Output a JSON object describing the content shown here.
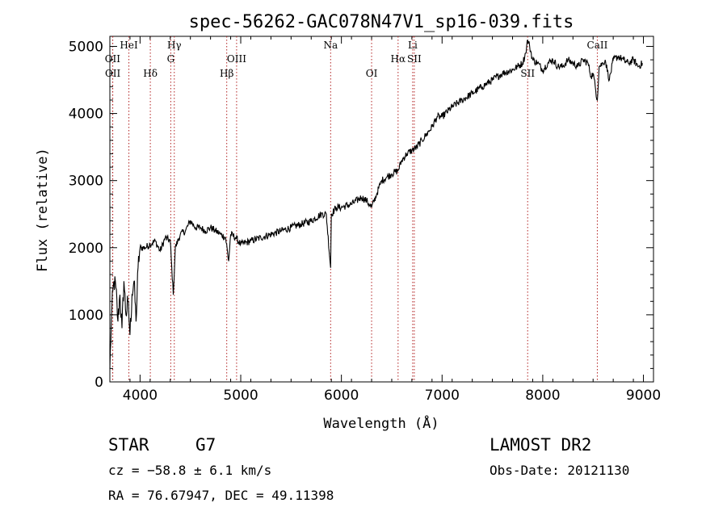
{
  "chart_data": {
    "type": "line",
    "title": "spec-56262-GAC078N47V1_sp16-039.fits",
    "xlabel": "Wavelength (Å)",
    "ylabel": "Flux (relative)",
    "xlim": [
      3700,
      9100
    ],
    "ylim": [
      0,
      5150
    ],
    "xticks": [
      4000,
      5000,
      6000,
      7000,
      8000,
      9000
    ],
    "yticks": [
      0,
      1000,
      2000,
      3000,
      4000,
      5000
    ],
    "grid": false,
    "series": [
      {
        "color": "#000000",
        "x": [
          3700,
          3720,
          3740,
          3760,
          3780,
          3800,
          3820,
          3840,
          3860,
          3880,
          3900,
          3920,
          3940,
          3960,
          3980,
          4000,
          4050,
          4100,
          4150,
          4200,
          4250,
          4300,
          4330,
          4350,
          4400,
          4450,
          4500,
          4550,
          4600,
          4650,
          4700,
          4750,
          4800,
          4850,
          4880,
          4900,
          4950,
          5000,
          5100,
          5200,
          5300,
          5400,
          5500,
          5600,
          5700,
          5800,
          5850,
          5893,
          5900,
          5950,
          6000,
          6100,
          6200,
          6250,
          6300,
          6350,
          6400,
          6450,
          6500,
          6563,
          6600,
          6650,
          6700,
          6750,
          6800,
          6850,
          6900,
          6950,
          7000,
          7100,
          7200,
          7300,
          7400,
          7500,
          7600,
          7700,
          7750,
          7800,
          7830,
          7850,
          7870,
          7900,
          7950,
          8000,
          8050,
          8100,
          8150,
          8200,
          8250,
          8300,
          8350,
          8400,
          8450,
          8480,
          8500,
          8542,
          8560,
          8600,
          8620,
          8662,
          8700,
          8750,
          8800,
          8850,
          8900,
          8950,
          8990
        ],
        "values": [
          200,
          1100,
          1500,
          1400,
          900,
          1300,
          800,
          1500,
          1000,
          1200,
          700,
          1300,
          1500,
          900,
          1700,
          2000,
          2000,
          2050,
          2100,
          1950,
          2150,
          2100,
          1300,
          2000,
          2200,
          2250,
          2400,
          2300,
          2300,
          2250,
          2300,
          2250,
          2200,
          2150,
          1800,
          2200,
          2150,
          2050,
          2100,
          2150,
          2200,
          2250,
          2300,
          2350,
          2400,
          2500,
          2500,
          1700,
          2500,
          2600,
          2600,
          2650,
          2750,
          2700,
          2600,
          2800,
          3000,
          3050,
          3100,
          3150,
          3300,
          3400,
          3450,
          3500,
          3600,
          3700,
          3800,
          3950,
          3950,
          4100,
          4200,
          4300,
          4400,
          4500,
          4600,
          4650,
          4700,
          4750,
          4900,
          5100,
          5000,
          4800,
          4750,
          4650,
          4750,
          4800,
          4700,
          4700,
          4800,
          4750,
          4700,
          4800,
          4750,
          4550,
          4600,
          4200,
          4700,
          4750,
          4800,
          4500,
          4800,
          4850,
          4800,
          4750,
          4800,
          4700,
          4750
        ]
      }
    ],
    "lines": [
      {
        "label": "OII",
        "x": 3727,
        "row": 1
      },
      {
        "label": "OII",
        "x": 3729,
        "row": 2
      },
      {
        "label": "HeI",
        "x": 3889,
        "row": 0
      },
      {
        "label": "Hδ",
        "x": 4102,
        "row": 2
      },
      {
        "label": "Hγ",
        "x": 4340,
        "row": 0
      },
      {
        "label": "G",
        "x": 4305,
        "row": 1
      },
      {
        "label": "OIII",
        "x": 4959,
        "row": 1
      },
      {
        "label": "Hβ",
        "x": 4861,
        "row": 2
      },
      {
        "label": "Na",
        "x": 5893,
        "row": 0
      },
      {
        "label": "OI",
        "x": 6300,
        "row": 2
      },
      {
        "label": "Li",
        "x": 6708,
        "row": 0
      },
      {
        "label": "Hα",
        "x": 6563,
        "row": 1
      },
      {
        "label": "SII",
        "x": 6724,
        "row": 1
      },
      {
        "label": "SII",
        "x": 7850,
        "row": 2
      },
      {
        "label": "CaII",
        "x": 8542,
        "row": 0
      }
    ]
  },
  "info": {
    "object_class": "STAR",
    "subclass": "G7",
    "survey": "LAMOST DR2",
    "cz": "cz = −58.8 ± 6.1 km/s",
    "obs_date": "Obs-Date: 20121130",
    "coords": "RA =  76.67947, DEC =  49.11398"
  }
}
